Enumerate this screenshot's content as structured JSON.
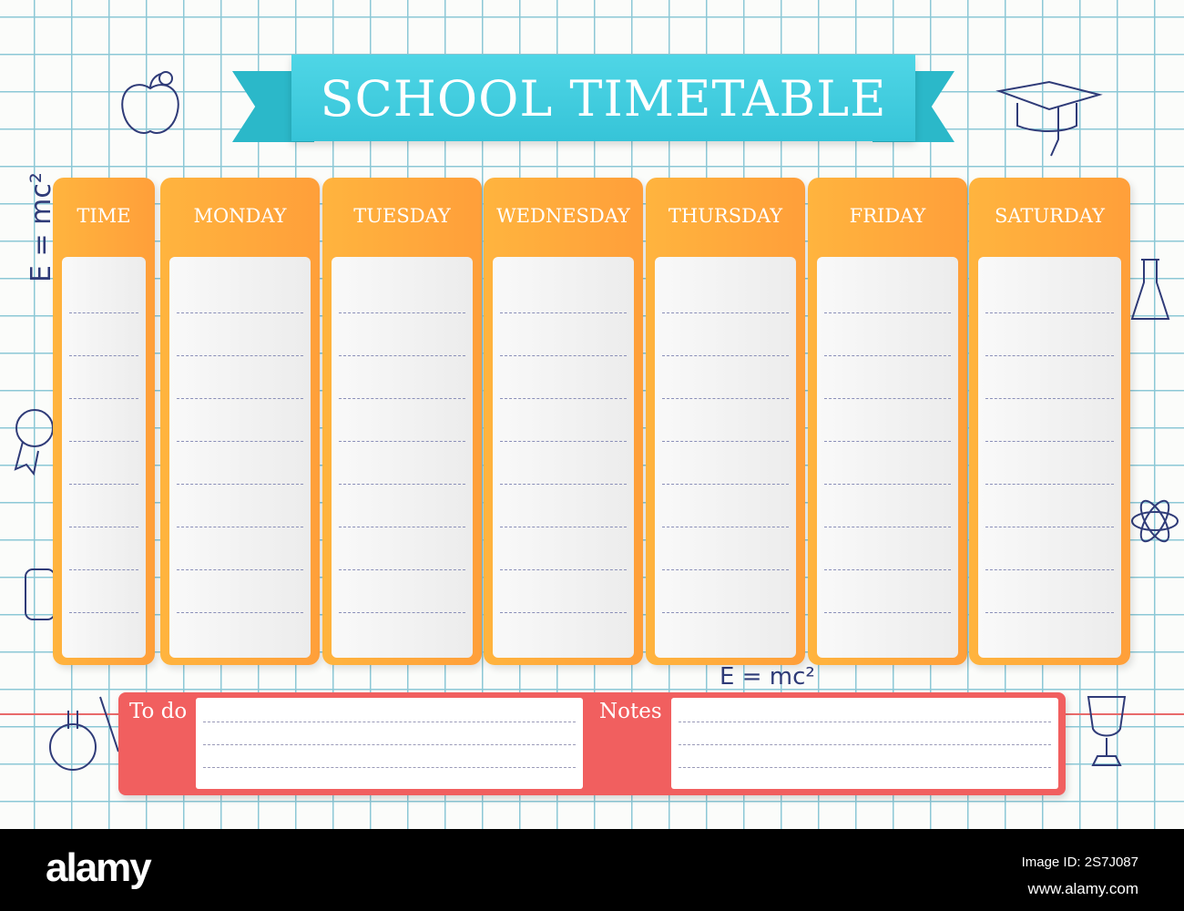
{
  "title": "SCHOOL TIMETABLE",
  "columns": [
    "TIME",
    "MONDAY",
    "TUESDAY",
    "WEDNESDAY",
    "THURSDAY",
    "FRIDAY",
    "SATURDAY"
  ],
  "bottom": {
    "todo_label": "To do",
    "notes_label": "Notes"
  },
  "doodles": {
    "formula": "E = mc²"
  },
  "colors": {
    "banner": "#3ecfe0",
    "columns": "#ffa83c",
    "todo_box": "#f15f5f",
    "grid": "#8cc8d6"
  },
  "footer": {
    "logo": "alamy",
    "image_id": "Image ID: 2S7J087",
    "url": "www.alamy.com"
  }
}
